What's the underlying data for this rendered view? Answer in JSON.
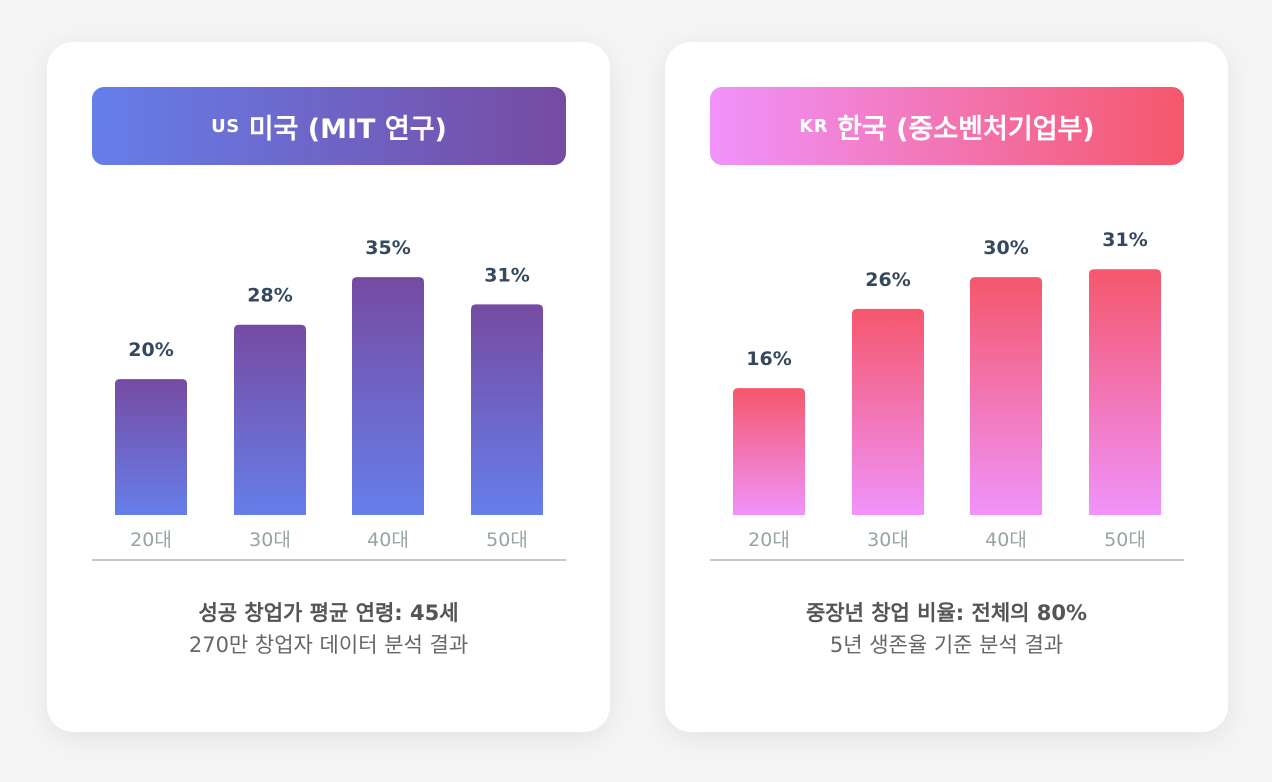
{
  "cards": [
    {
      "flag": "US",
      "title": "미국 (MIT 연구)",
      "summary_main": "성공 창업가 평균 연령: 45세",
      "summary_sub": "270만 창업자 데이터 분석 결과",
      "colors": {
        "top": "#764ba2",
        "bottom": "#667eea"
      }
    },
    {
      "flag": "KR",
      "title": "한국 (중소벤처기업부)",
      "summary_main": "중장년 창업 비율: 전체의 80%",
      "summary_sub": "5년 생존율 기준 분석 결과",
      "colors": {
        "top": "#f5576c",
        "bottom": "#f093fb"
      }
    }
  ],
  "chart_data": [
    {
      "type": "bar",
      "categories": [
        "20대",
        "30대",
        "40대",
        "50대"
      ],
      "values": [
        20,
        28,
        35,
        31
      ],
      "value_labels": [
        "20%",
        "28%",
        "35%",
        "31%"
      ],
      "ylim": [
        0,
        49
      ]
    },
    {
      "type": "bar",
      "categories": [
        "20대",
        "30대",
        "40대",
        "50대"
      ],
      "values": [
        16,
        26,
        30,
        31
      ],
      "value_labels": [
        "16%",
        "26%",
        "30%",
        "31%"
      ],
      "ylim": [
        0,
        42
      ]
    }
  ]
}
